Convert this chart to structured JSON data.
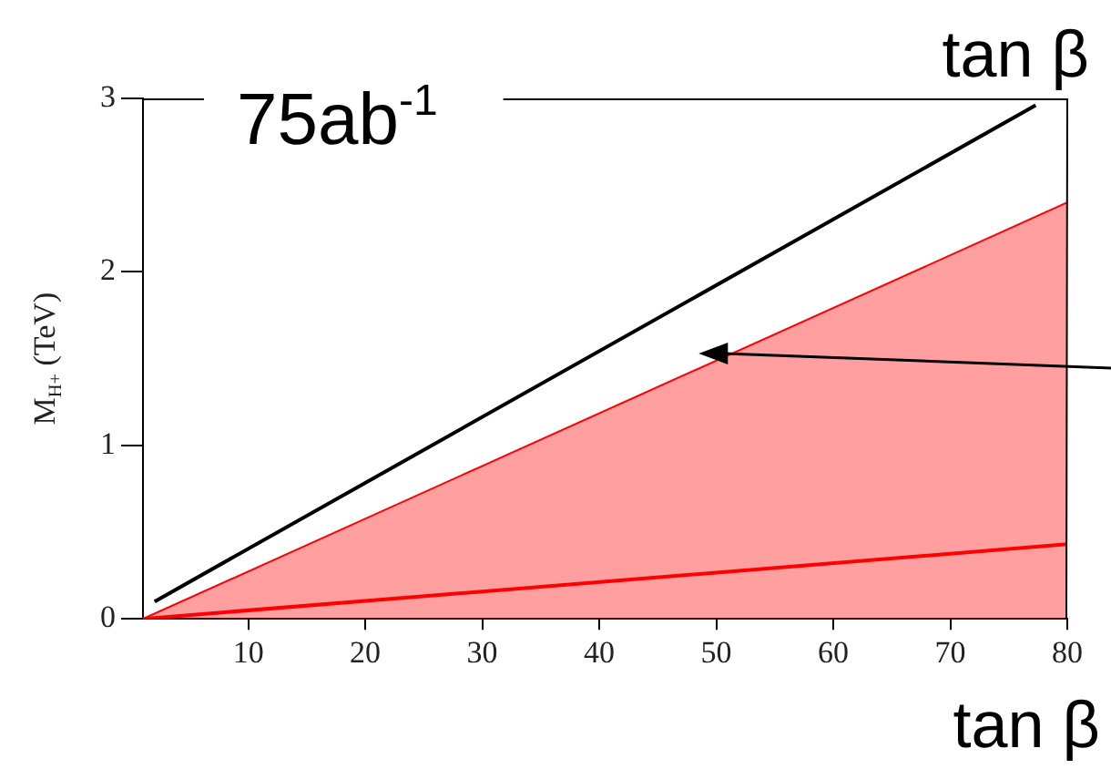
{
  "chart_data": {
    "type": "line",
    "ylabel": "M$_{H+}$ (TeV)",
    "xlabel": "tan β",
    "annotations": [
      "75ab$^{-1}$",
      "tan β"
    ],
    "xlim": [
      1,
      80
    ],
    "xticks": [
      10,
      20,
      30,
      40,
      50,
      60,
      70,
      80
    ],
    "ylim": [
      0,
      3
    ],
    "yticks": [
      0,
      1,
      2,
      3
    ],
    "grid": false,
    "legend": false,
    "marker": "none",
    "line_style": "solid",
    "series": [
      {
        "type": "area",
        "color": "#ff0000",
        "x": [
          1,
          80
        ],
        "values": [
          0,
          2.4
        ]
      },
      {
        "color": "#ff0000",
        "x": [
          1,
          80
        ],
        "values": [
          0,
          0.43
        ]
      },
      {
        "color": "#000000",
        "x": [
          2,
          77.3
        ],
        "values": [
          0.1,
          2.96
        ]
      }
    ]
  }
}
